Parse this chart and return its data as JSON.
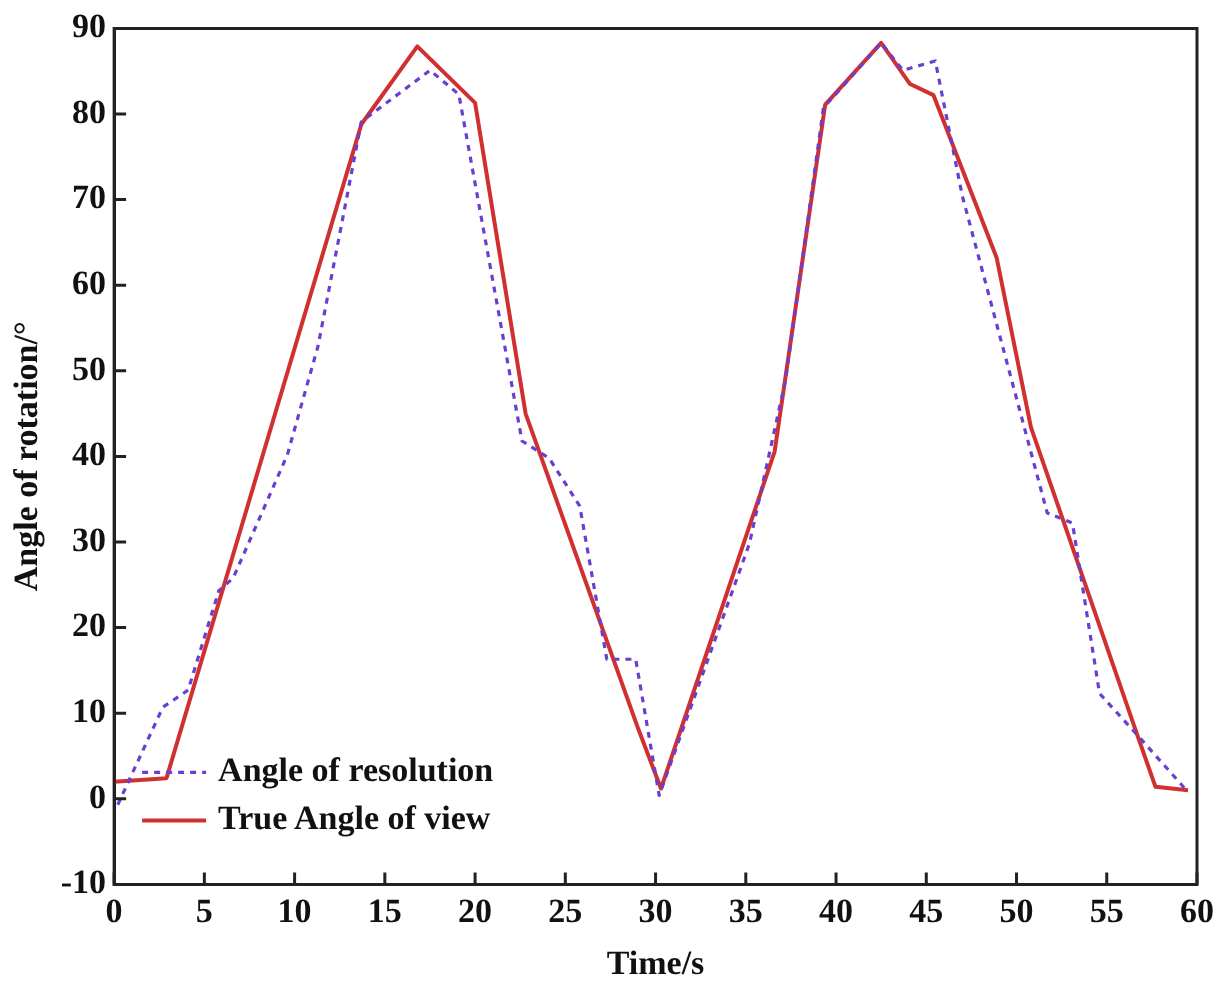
{
  "chart_data": {
    "type": "line",
    "xlabel": "Time/s",
    "ylabel": "Angle of rotation/°",
    "xlim": [
      0,
      60
    ],
    "xticks": [
      0,
      5,
      10,
      15,
      20,
      25,
      30,
      35,
      40,
      45,
      50,
      55,
      60
    ],
    "ylim": [
      -10,
      90
    ],
    "yticks": [
      -10,
      0,
      10,
      20,
      30,
      40,
      50,
      60,
      70,
      80,
      90
    ],
    "grid": false,
    "legend": "bottom left",
    "marker": "none",
    "series": [
      {
        "name": "Angle of resolution",
        "color": "#6a3fd0",
        "line_style": "dotted",
        "x": [
          0.2,
          2.7,
          4.1,
          5.8,
          6.6,
          9.6,
          11.3,
          13.7,
          17.5,
          19.1,
          22.6,
          24.1,
          25.8,
          27.3,
          28.9,
          30.2,
          35.2,
          37.2,
          39.3,
          42.5,
          43.7,
          45.5,
          47,
          51.7,
          53.1,
          54.6,
          56.8,
          59.5
        ],
        "values": [
          -0.7,
          10.7,
          12.7,
          24.3,
          25.8,
          40.2,
          52.9,
          79.1,
          85.1,
          82.3,
          41.8,
          39.8,
          34.2,
          16.3,
          16.3,
          0.4,
          29.8,
          48.9,
          80.7,
          88.3,
          85.1,
          86.2,
          70.4,
          33.4,
          32.2,
          12.3,
          7.2,
          0.8
        ]
      },
      {
        "name": "True Angle of view",
        "color": "#d03030",
        "line_style": "solid",
        "x": [
          0,
          2.9,
          13.7,
          16.8,
          20,
          22.8,
          29,
          30.3,
          36.6,
          39.4,
          42.5,
          44.1,
          45.4,
          48.9,
          50.8,
          56.8,
          57.7,
          59.5
        ],
        "values": [
          2,
          2.4,
          78.8,
          87.9,
          81.3,
          45,
          8.4,
          1.2,
          40.6,
          81.1,
          88.3,
          83.5,
          82.2,
          63.2,
          43.4,
          6.8,
          1.4,
          1
        ]
      }
    ]
  }
}
